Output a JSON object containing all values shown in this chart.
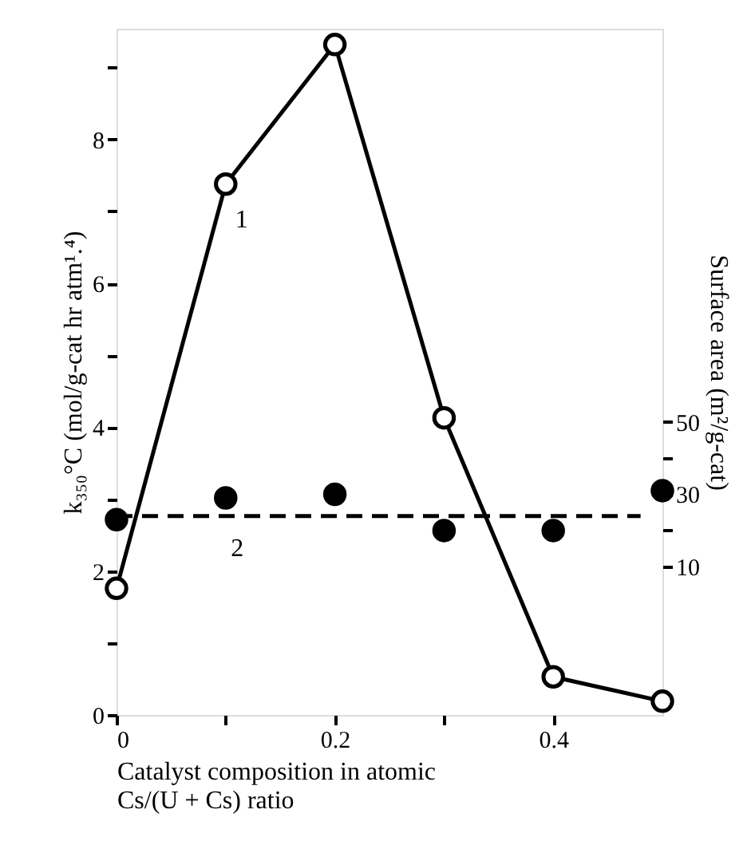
{
  "chart_data": {
    "type": "line",
    "xlabel": "Catalyst composition in atomic\nCs/(U + Cs)  ratio",
    "ylabel": "k₃₅₀°C  (mol/g-cat hr atm¹.⁴)",
    "y2label": "Surface area  (m²/g-cat)",
    "x": [
      0,
      0.1,
      0.2,
      0.3,
      0.4,
      0.5
    ],
    "series": [
      {
        "color": "#000000",
        "marker": "circle",
        "values": [
          1.76,
          7.38,
          9.32,
          4.13,
          0.53,
          0.19
        ]
      },
      {
        "type": "scatter",
        "axis": "y2",
        "color": "#000000",
        "marker": "circle",
        "values": [
          23,
          29,
          30,
          20,
          20,
          31
        ]
      },
      {
        "type": "line",
        "axis": "y2",
        "color": "#000000",
        "marker": "none",
        "line_style": "dashed",
        "x": [
          0,
          0.48
        ],
        "values": [
          24,
          24
        ]
      }
    ],
    "annotations": [
      "1",
      "2"
    ],
    "xlim": [
      0,
      0.5
    ],
    "xticks": [
      0,
      {
        "value": 0.1,
        "label": null
      },
      0.2,
      {
        "value": 0.3,
        "label": null
      },
      0.4
    ],
    "ylim": [
      0,
      9.54
    ],
    "yticks": [
      0,
      {
        "value": 1,
        "label": null
      },
      2,
      {
        "value": 3,
        "label": null
      },
      4,
      {
        "value": 5,
        "label": null
      },
      6,
      {
        "value": 7,
        "label": null
      },
      8,
      {
        "value": 9,
        "label": null
      }
    ],
    "y2lim": [
      -30.9,
      158.5
    ],
    "y2ticks": [
      10,
      {
        "value": 20,
        "label": null
      },
      30,
      {
        "value": 40,
        "label": null
      },
      50
    ]
  }
}
